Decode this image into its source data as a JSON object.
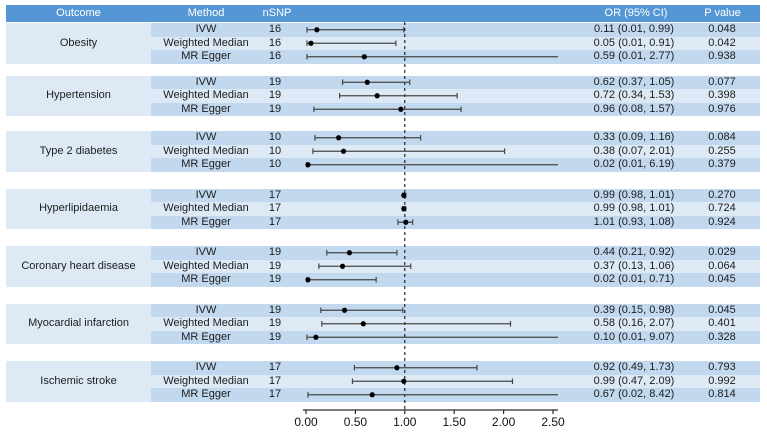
{
  "figure": {
    "header": {
      "outcome": "Outcome",
      "method": "Method",
      "nsnp": "nSNP",
      "or_ci": "OR (95% CI)",
      "p_value": "P value"
    },
    "colors": {
      "header_bg": "#5597d4",
      "header_text": "#ffffff",
      "band_dark": "#c1d8ee",
      "band_light": "#ddeaf6",
      "outcome_cell_bg": "#ddeaf6",
      "row_text": "#1c1c1c",
      "ci_line": "#474747",
      "point": "#000000",
      "reference_line": "#000000",
      "axis": "#2b2b2b",
      "background": "#ffffff"
    }
  },
  "chart_data": {
    "type": "forest",
    "title": "",
    "xlabel": "",
    "xlim": [
      0,
      2.5
    ],
    "reference_line": 1.0,
    "x_tick_values": [
      0,
      0.5,
      1.0,
      1.5,
      2.0,
      2.5
    ],
    "x_tick_labels": [
      "0.00",
      "0.50",
      "1.00",
      "1.50",
      "2.00",
      "2.50"
    ],
    "legend": "none",
    "grid": "off",
    "groups": [
      {
        "outcome": "Obesity",
        "rows": [
          {
            "method": "IVW",
            "nsnp": "16",
            "or": 0.11,
            "ci_low": 0.01,
            "ci_high": 0.99,
            "or_text": "0.11 (0.01, 0.99)",
            "p": "0.048"
          },
          {
            "method": "Weighted Median",
            "nsnp": "16",
            "or": 0.05,
            "ci_low": 0.01,
            "ci_high": 0.91,
            "or_text": "0.05 (0.01, 0.91)",
            "p": "0.042"
          },
          {
            "method": "MR Egger",
            "nsnp": "16",
            "or": 0.59,
            "ci_low": 0.01,
            "ci_high": 2.77,
            "or_text": "0.59 (0.01, 2.77)",
            "p": "0.938"
          }
        ]
      },
      {
        "outcome": "Hypertension",
        "rows": [
          {
            "method": "IVW",
            "nsnp": "19",
            "or": 0.62,
            "ci_low": 0.37,
            "ci_high": 1.05,
            "or_text": "0.62 (0.37, 1.05)",
            "p": "0.077"
          },
          {
            "method": "Weighted Median",
            "nsnp": "19",
            "or": 0.72,
            "ci_low": 0.34,
            "ci_high": 1.53,
            "or_text": "0.72 (0.34, 1.53)",
            "p": "0.398"
          },
          {
            "method": "MR Egger",
            "nsnp": "19",
            "or": 0.96,
            "ci_low": 0.08,
            "ci_high": 1.57,
            "or_text": "0.96 (0.08, 1.57)",
            "p": "0.976"
          }
        ]
      },
      {
        "outcome": "Type 2 diabetes",
        "rows": [
          {
            "method": "IVW",
            "nsnp": "10",
            "or": 0.33,
            "ci_low": 0.09,
            "ci_high": 1.16,
            "or_text": "0.33 (0.09, 1.16)",
            "p": "0.084"
          },
          {
            "method": "Weighted Median",
            "nsnp": "10",
            "or": 0.38,
            "ci_low": 0.07,
            "ci_high": 2.01,
            "or_text": "0.38 (0.07, 2.01)",
            "p": "0.255"
          },
          {
            "method": "MR Egger",
            "nsnp": "10",
            "or": 0.02,
            "ci_low": 0.01,
            "ci_high": 6.19,
            "or_text": "0.02 (0.01, 6.19)",
            "p": "0.379"
          }
        ]
      },
      {
        "outcome": "Hyperlipidaemia",
        "rows": [
          {
            "method": "IVW",
            "nsnp": "17",
            "or": 0.99,
            "ci_low": 0.98,
            "ci_high": 1.01,
            "or_text": "0.99 (0.98, 1.01)",
            "p": "0.270"
          },
          {
            "method": "Weighted Median",
            "nsnp": "17",
            "or": 0.99,
            "ci_low": 0.98,
            "ci_high": 1.01,
            "or_text": "0.99 (0.98, 1.01)",
            "p": "0.724"
          },
          {
            "method": "MR Egger",
            "nsnp": "17",
            "or": 1.01,
            "ci_low": 0.93,
            "ci_high": 1.08,
            "or_text": "1.01 (0.93, 1.08)",
            "p": "0.924"
          }
        ]
      },
      {
        "outcome": "Coronary heart disease",
        "rows": [
          {
            "method": "IVW",
            "nsnp": "19",
            "or": 0.44,
            "ci_low": 0.21,
            "ci_high": 0.92,
            "or_text": "0.44 (0.21, 0.92)",
            "p": "0.029"
          },
          {
            "method": "Weighted Median",
            "nsnp": "19",
            "or": 0.37,
            "ci_low": 0.13,
            "ci_high": 1.06,
            "or_text": "0.37 (0.13, 1.06)",
            "p": "0.064"
          },
          {
            "method": "MR Egger",
            "nsnp": "19",
            "or": 0.02,
            "ci_low": 0.01,
            "ci_high": 0.71,
            "or_text": "0.02 (0.01, 0.71)",
            "p": "0.045"
          }
        ]
      },
      {
        "outcome": "Myocardial infarction",
        "rows": [
          {
            "method": "IVW",
            "nsnp": "19",
            "or": 0.39,
            "ci_low": 0.15,
            "ci_high": 0.98,
            "or_text": "0.39 (0.15, 0.98)",
            "p": "0.045"
          },
          {
            "method": "Weighted Median",
            "nsnp": "19",
            "or": 0.58,
            "ci_low": 0.16,
            "ci_high": 2.07,
            "or_text": "0.58 (0.16, 2.07)",
            "p": "0.401"
          },
          {
            "method": "MR Egger",
            "nsnp": "19",
            "or": 0.1,
            "ci_low": 0.01,
            "ci_high": 9.07,
            "or_text": "0.10 (0.01, 9.07)",
            "p": "0.328"
          }
        ]
      },
      {
        "outcome": "Ischemic stroke",
        "rows": [
          {
            "method": "IVW",
            "nsnp": "17",
            "or": 0.92,
            "ci_low": 0.49,
            "ci_high": 1.73,
            "or_text": "0.92 (0.49, 1.73)",
            "p": "0.793"
          },
          {
            "method": "Weighted Median",
            "nsnp": "17",
            "or": 0.99,
            "ci_low": 0.47,
            "ci_high": 2.09,
            "or_text": "0.99 (0.47, 2.09)",
            "p": "0.992"
          },
          {
            "method": "MR Egger",
            "nsnp": "17",
            "or": 0.67,
            "ci_low": 0.02,
            "ci_high": 8.42,
            "or_text": "0.67 (0.02, 8.42)",
            "p": "0.814"
          }
        ]
      }
    ]
  }
}
